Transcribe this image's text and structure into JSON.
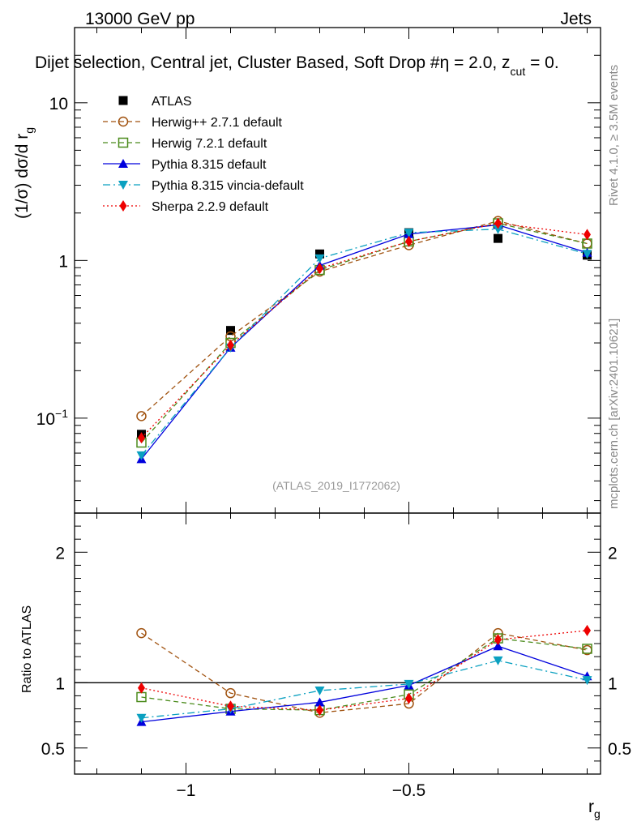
{
  "header": {
    "left": "13000 GeV pp",
    "right": "Jets",
    "subtitle": "Dijet selection, Central jet, Cluster Based, Soft Drop #η = 2.0, z_cut = 0.",
    "subtitle_main": "Dijet selection, Central jet, Cluster Based, Soft Drop #",
    "subtitle_mid": "η = 2.0, z",
    "subtitle_sub": "cut",
    "subtitle_end": " = 0."
  },
  "side_labels": {
    "rivet": "Rivet 4.1.0, ≥ 3.5M events",
    "mcplots": "mcplots.cern.ch [arXiv:2401.10621]"
  },
  "watermark": "(ATLAS_2019_I1772062)",
  "chart_data": [
    {
      "type": "line",
      "panel": "main",
      "ylabel": "(1/σ) dσ/d r_g",
      "ylabel_main": "(1/σ) dσ/d r",
      "ylabel_sub": "g",
      "yscale": "log",
      "xlim": [
        -1.25,
        -0.07
      ],
      "ylim": [
        0.025,
        30
      ],
      "yticks": [
        {
          "value": 10,
          "label": "10"
        },
        {
          "value": 1,
          "label": "1"
        },
        {
          "value": 0.1,
          "label": "10",
          "sup": "−1"
        }
      ],
      "x": [
        -1.1,
        -0.9,
        -0.7,
        -0.5,
        -0.3,
        -0.1
      ],
      "series": [
        {
          "name": "ATLAS",
          "style": "data",
          "color": "#000000",
          "marker": "square",
          "values": [
            0.079,
            0.36,
            1.1,
            1.5,
            1.38,
            1.08
          ]
        },
        {
          "name": "Herwig++ 2.7.1 default",
          "style": "dashed",
          "color": "#a0520f",
          "marker": "open-circle",
          "values": [
            0.103,
            0.33,
            0.85,
            1.25,
            1.78,
            1.28
          ]
        },
        {
          "name": "Herwig 7.2.1 default",
          "style": "dashed",
          "color": "#4b8b1c",
          "marker": "open-square",
          "values": [
            0.07,
            0.3,
            0.87,
            1.32,
            1.72,
            1.28
          ]
        },
        {
          "name": "Pythia 8.315 default",
          "style": "solid",
          "color": "#0000dd",
          "marker": "triangle-up",
          "values": [
            0.055,
            0.28,
            0.93,
            1.47,
            1.68,
            1.12
          ]
        },
        {
          "name": "Pythia 8.315 vincia-default",
          "style": "dashdot",
          "color": "#0aa0c0",
          "marker": "triangle-down",
          "values": [
            0.058,
            0.28,
            1.03,
            1.5,
            1.58,
            1.1
          ]
        },
        {
          "name": "Sherpa 2.2.9 default",
          "style": "dotted",
          "color": "#ee0000",
          "marker": "diamond",
          "values": [
            0.075,
            0.29,
            0.89,
            1.32,
            1.72,
            1.46
          ]
        }
      ]
    },
    {
      "type": "line",
      "panel": "ratio",
      "xlabel": "r_g",
      "xlabel_main": "r",
      "xlabel_sub": "g",
      "ylabel": "Ratio to ATLAS",
      "ylim": [
        0.3,
        2.3
      ],
      "yticks": [
        {
          "value": 2,
          "label": "2"
        },
        {
          "value": 1,
          "label": "1"
        },
        {
          "value": 0.5,
          "label": "0.5"
        }
      ],
      "xticks": [
        {
          "value": -1,
          "label": "−1"
        },
        {
          "value": -0.5,
          "label": "−0.5"
        }
      ],
      "x": [
        -1.1,
        -0.9,
        -0.7,
        -0.5,
        -0.3,
        -0.1
      ],
      "series": [
        {
          "name": "Herwig++ 2.7.1 default",
          "style": "dashed",
          "color": "#a0520f",
          "marker": "open-circle",
          "values": [
            1.38,
            0.92,
            0.77,
            0.84,
            1.38,
            1.25
          ]
        },
        {
          "name": "Herwig 7.2.1 default",
          "style": "dashed",
          "color": "#4b8b1c",
          "marker": "open-square",
          "values": [
            0.89,
            0.8,
            0.79,
            0.91,
            1.34,
            1.26
          ]
        },
        {
          "name": "Pythia 8.315 default",
          "style": "solid",
          "color": "#0000dd",
          "marker": "triangle-up",
          "values": [
            0.7,
            0.78,
            0.85,
            0.98,
            1.28,
            1.05
          ]
        },
        {
          "name": "Pythia 8.315 vincia-default",
          "style": "dashdot",
          "color": "#0aa0c0",
          "marker": "triangle-down",
          "values": [
            0.73,
            0.8,
            0.94,
            0.99,
            1.17,
            1.02
          ]
        },
        {
          "name": "Sherpa 2.2.9 default",
          "style": "dotted",
          "color": "#ee0000",
          "marker": "diamond",
          "values": [
            0.96,
            0.82,
            0.79,
            0.88,
            1.33,
            1.4
          ]
        }
      ]
    }
  ]
}
